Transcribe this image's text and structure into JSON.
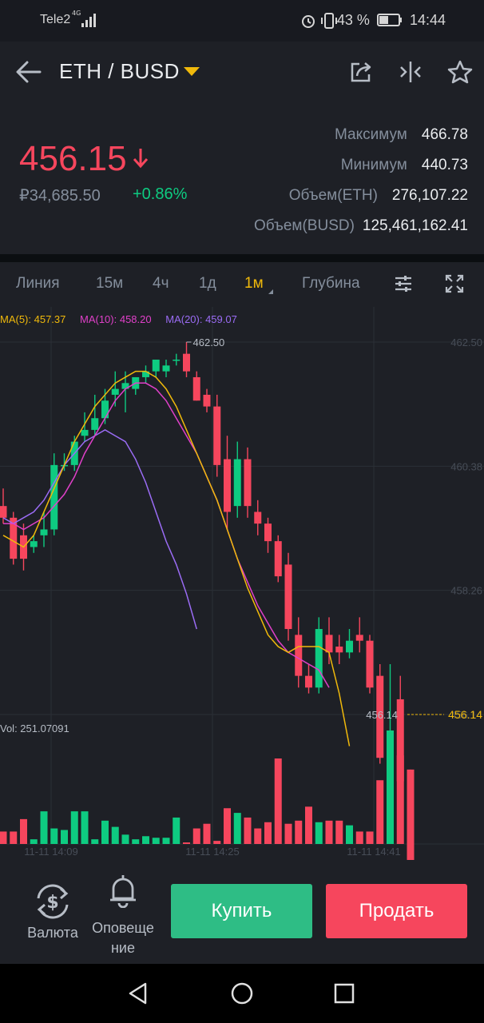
{
  "status_bar": {
    "carrier": "Tele2",
    "network": "4G",
    "battery": "43 %",
    "time": "14:44"
  },
  "header": {
    "pair": "ETH / BUSD",
    "icons": [
      "back-arrow-icon",
      "share-icon",
      "compare-icon",
      "star-icon"
    ]
  },
  "ticker": {
    "price": "456.15",
    "fiat_price": "₽34,685.50",
    "change": "+0.86%",
    "stats": [
      {
        "label": "Максимум",
        "value": "466.78"
      },
      {
        "label": "Минимум",
        "value": "440.73"
      },
      {
        "label": "Объем(ETH)",
        "value": "276,107.22"
      },
      {
        "label": "Объем(BUSD)",
        "value": "125,461,162.41"
      }
    ]
  },
  "tabs": {
    "items": [
      "Линия",
      "15м",
      "4ч",
      "1д",
      "1м",
      "Глубина"
    ],
    "active": "1м",
    "icons": [
      "indicator-settings-icon",
      "fullscreen-icon"
    ]
  },
  "chart": {
    "ma5": "MA(5): 457.37",
    "ma10": "MA(10): 458.20",
    "ma20": "MA(20): 459.07",
    "vol": "Vol: 251.07091",
    "high_label": "462.50",
    "last_label": "456.14",
    "last_tag": "456.14",
    "y_ticks": [
      "462.50",
      "460.38",
      "458.26",
      "456.14"
    ],
    "x_ticks": [
      "11-11 14:09",
      "11-11 14:25",
      "11-11 14:41"
    ],
    "colors": {
      "up": "#0ecb81",
      "down": "#f6465d",
      "ma5": "#f0b90b",
      "ma10": "#e040c9",
      "ma20": "#9b6cf5"
    }
  },
  "chart_data": {
    "type": "candlestick",
    "price_ylim": [
      456.14,
      462.5
    ],
    "candles": [
      {
        "o": 459.7,
        "h": 460.0,
        "c": 459.5,
        "l": 459.4
      },
      {
        "o": 459.5,
        "h": 459.6,
        "c": 458.8,
        "l": 458.7
      },
      {
        "o": 459.2,
        "h": 459.4,
        "c": 458.8,
        "l": 458.6
      },
      {
        "o": 459.0,
        "h": 459.2,
        "c": 459.1,
        "l": 458.9
      },
      {
        "o": 459.2,
        "h": 459.6,
        "c": 459.3,
        "l": 459.0
      },
      {
        "o": 459.3,
        "h": 460.6,
        "c": 460.4,
        "l": 459.2
      },
      {
        "o": 460.4,
        "h": 460.6,
        "c": 460.4,
        "l": 460.3
      },
      {
        "o": 460.4,
        "h": 460.9,
        "c": 460.8,
        "l": 460.3
      },
      {
        "o": 460.9,
        "h": 461.3,
        "c": 461.0,
        "l": 460.8
      },
      {
        "o": 461.0,
        "h": 461.6,
        "c": 461.2,
        "l": 460.9
      },
      {
        "o": 461.2,
        "h": 461.7,
        "c": 461.5,
        "l": 461.1
      },
      {
        "o": 461.6,
        "h": 462.0,
        "c": 461.7,
        "l": 461.4
      },
      {
        "o": 461.7,
        "h": 462.0,
        "c": 461.8,
        "l": 461.3
      },
      {
        "o": 461.7,
        "h": 461.9,
        "c": 461.9,
        "l": 461.6
      },
      {
        "o": 461.9,
        "h": 462.1,
        "c": 462.0,
        "l": 461.8
      },
      {
        "o": 462.0,
        "h": 462.2,
        "c": 462.2,
        "l": 461.9
      },
      {
        "o": 462.0,
        "h": 462.2,
        "c": 462.1,
        "l": 461.9
      },
      {
        "o": 462.2,
        "h": 462.3,
        "c": 462.2,
        "l": 462.1
      },
      {
        "o": 462.3,
        "h": 462.5,
        "c": 462.0,
        "l": 461.9
      },
      {
        "o": 461.9,
        "h": 462.0,
        "c": 461.5,
        "l": 461.5
      },
      {
        "o": 461.6,
        "h": 461.7,
        "c": 461.4,
        "l": 461.3
      },
      {
        "o": 461.4,
        "h": 461.6,
        "c": 460.4,
        "l": 460.2
      },
      {
        "o": 460.5,
        "h": 460.9,
        "c": 459.6,
        "l": 459.3
      },
      {
        "o": 459.7,
        "h": 460.8,
        "c": 460.5,
        "l": 459.5
      },
      {
        "o": 460.5,
        "h": 460.7,
        "c": 459.7,
        "l": 459.5
      },
      {
        "o": 459.6,
        "h": 459.8,
        "c": 459.4,
        "l": 459.2
      },
      {
        "o": 459.4,
        "h": 459.5,
        "c": 459.1,
        "l": 458.9
      },
      {
        "o": 459.1,
        "h": 459.2,
        "c": 458.5,
        "l": 458.4
      },
      {
        "o": 458.7,
        "h": 458.9,
        "c": 457.6,
        "l": 457.4
      },
      {
        "o": 457.5,
        "h": 457.8,
        "c": 456.8,
        "l": 456.6
      },
      {
        "o": 456.8,
        "h": 457.0,
        "c": 456.6,
        "l": 456.5
      },
      {
        "o": 456.6,
        "h": 457.8,
        "c": 457.6,
        "l": 456.5
      },
      {
        "o": 457.5,
        "h": 457.8,
        "c": 457.2,
        "l": 457.0
      },
      {
        "o": 457.3,
        "h": 457.5,
        "c": 457.2,
        "l": 457.0
      },
      {
        "o": 457.2,
        "h": 457.6,
        "c": 457.4,
        "l": 457.1
      },
      {
        "o": 457.5,
        "h": 457.8,
        "c": 457.4,
        "l": 457.2
      },
      {
        "o": 457.4,
        "h": 457.5,
        "c": 456.6,
        "l": 456.5
      },
      {
        "o": 456.8,
        "h": 457.0,
        "c": 455.4,
        "l": 455.3
      },
      {
        "o": 455.3,
        "h": 457.0,
        "c": 455.7,
        "l": 455.1
      },
      {
        "o": 456.4,
        "h": 456.8,
        "c": 455.0,
        "l": 454.9
      },
      {
        "o": 455.2,
        "h": 455.2,
        "c": 453.5,
        "l": 453.5
      }
    ],
    "volumes": [
      8,
      8,
      16,
      3,
      21,
      10,
      9,
      21,
      21,
      3,
      15,
      11,
      6,
      3,
      5,
      4,
      4,
      17,
      1,
      10,
      13,
      2,
      23,
      20,
      17,
      10,
      14,
      55,
      13,
      15,
      24,
      14,
      15,
      15,
      12,
      8,
      8,
      41,
      73,
      57,
      24
    ],
    "ma5": [
      459.2,
      459.1,
      459.0,
      459.2,
      459.6,
      460.0,
      460.4,
      460.8,
      461.1,
      461.4,
      461.6,
      461.8,
      461.9,
      462.0,
      462.0,
      461.9,
      461.7,
      461.4,
      461.0,
      460.6,
      460.2,
      459.8,
      459.3,
      458.8,
      458.3,
      457.9,
      457.5,
      457.3,
      457.2,
      457.3,
      457.3,
      457.3,
      457.2,
      456.5,
      455.6
    ],
    "ma10": [
      459.4,
      459.4,
      459.3,
      459.4,
      459.5,
      459.7,
      459.9,
      460.2,
      460.6,
      460.9,
      461.2,
      461.5,
      461.7,
      461.8,
      461.8,
      461.7,
      461.5,
      461.2,
      460.9,
      460.6,
      460.2,
      459.8,
      459.3,
      458.8,
      458.4,
      458.0,
      457.7,
      457.4,
      457.2,
      457.1,
      457.0,
      456.9,
      456.6
    ],
    "ma20": [
      459.5,
      459.4,
      459.5,
      459.6,
      459.8,
      460.1,
      460.4,
      460.6,
      460.8,
      460.9,
      461.0,
      460.9,
      460.8,
      460.5,
      460.1,
      459.6,
      459.1,
      458.7,
      458.2,
      457.6
    ],
    "y_ticks": [
      "462.50",
      "460.38",
      "458.26",
      "456.14"
    ],
    "x_ticks": [
      "11-11 14:09",
      "11-11 14:25",
      "11-11 14:41"
    ]
  },
  "actions": {
    "currency_label": "Валюта",
    "alert_label_1": "Оповеще",
    "alert_label_2": "ние",
    "buy_label": "Купить",
    "sell_label": "Продать"
  }
}
